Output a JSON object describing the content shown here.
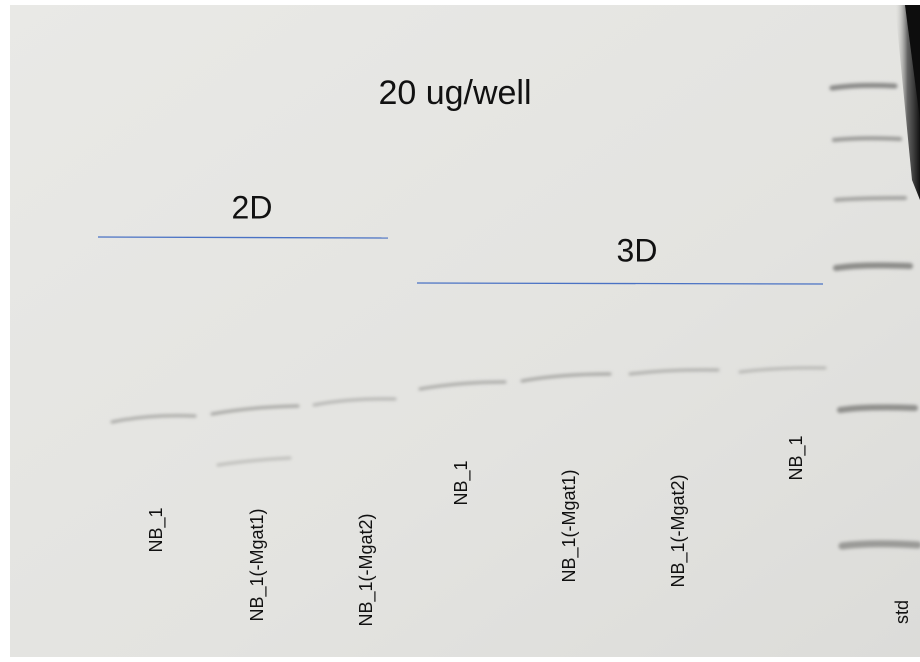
{
  "title": "20 ug/well",
  "groups": [
    {
      "label": "2D"
    },
    {
      "label": "3D"
    }
  ],
  "lanes": [
    "NB_1",
    "NB_1(-Mgat1)",
    "NB_1(-Mgat2)",
    "NB_1",
    "NB_1(-Mgat1)",
    "NB_1(-Mgat2)",
    "NB_1",
    "std"
  ]
}
